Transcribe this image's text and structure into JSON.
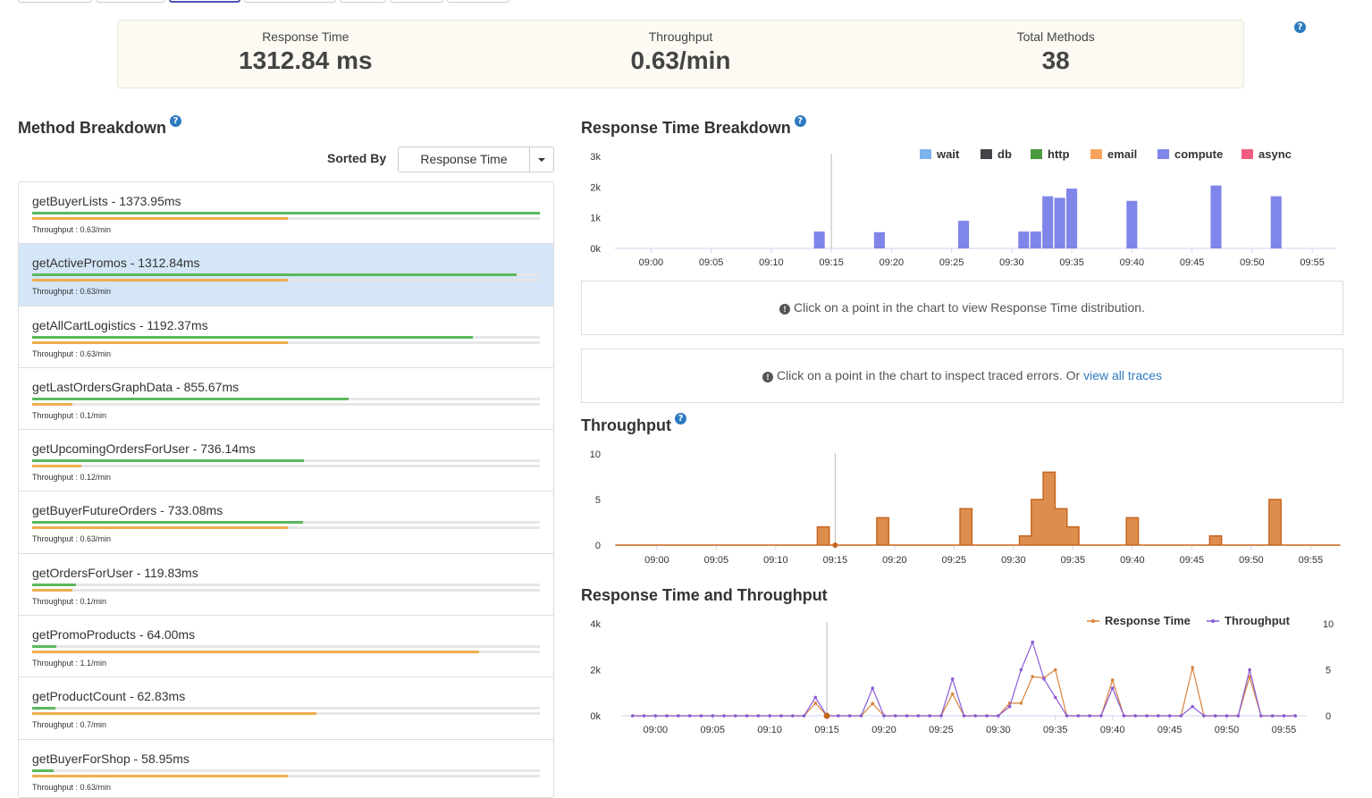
{
  "summary": {
    "response_time_label": "Response Time",
    "response_time_value": "1312.84 ms",
    "throughput_label": "Throughput",
    "throughput_value": "0.63/min",
    "total_methods_label": "Total Methods",
    "total_methods_value": "38"
  },
  "help_glyph": "?",
  "method_breakdown": {
    "title": "Method Breakdown",
    "sorted_by_label": "Sorted By",
    "sorted_by_value": "Response Time",
    "methods": [
      {
        "name": "getBuyerLists - 1373.95ms",
        "throughput": "Throughput : 0.63/min",
        "rt_ratio": 1.0,
        "tp_ratio": 0.504,
        "selected": false
      },
      {
        "name": "getActivePromos - 1312.84ms",
        "throughput": "Throughput : 0.63/min",
        "rt_ratio": 0.955,
        "tp_ratio": 0.504,
        "selected": true
      },
      {
        "name": "getAllCartLogistics - 1192.37ms",
        "throughput": "Throughput : 0.63/min",
        "rt_ratio": 0.868,
        "tp_ratio": 0.504,
        "selected": false
      },
      {
        "name": "getLastOrdersGraphData - 855.67ms",
        "throughput": "Throughput : 0.1/min",
        "rt_ratio": 0.623,
        "tp_ratio": 0.08,
        "selected": false
      },
      {
        "name": "getUpcomingOrdersForUser - 736.14ms",
        "throughput": "Throughput : 0.12/min",
        "rt_ratio": 0.536,
        "tp_ratio": 0.097,
        "selected": false
      },
      {
        "name": "getBuyerFutureOrders - 733.08ms",
        "throughput": "Throughput : 0.63/min",
        "rt_ratio": 0.534,
        "tp_ratio": 0.504,
        "selected": false
      },
      {
        "name": "getOrdersForUser - 119.83ms",
        "throughput": "Throughput : 0.1/min",
        "rt_ratio": 0.087,
        "tp_ratio": 0.08,
        "selected": false
      },
      {
        "name": "getPromoProducts - 64.00ms",
        "throughput": "Throughput : 1.1/min",
        "rt_ratio": 0.047,
        "tp_ratio": 0.88,
        "selected": false
      },
      {
        "name": "getProductCount - 62.83ms",
        "throughput": "Throughput : 0.7/min",
        "rt_ratio": 0.046,
        "tp_ratio": 0.56,
        "selected": false
      },
      {
        "name": "getBuyerForShop - 58.95ms",
        "throughput": "Throughput : 0.63/min",
        "rt_ratio": 0.043,
        "tp_ratio": 0.504,
        "selected": false
      }
    ],
    "colors": {
      "response_time_bar": "#5cb85c",
      "throughput_bar": "#f0ad4e"
    }
  },
  "rt_breakdown": {
    "title": "Response Time Breakdown",
    "legend": [
      {
        "label": "wait",
        "color": "#7cb5ec"
      },
      {
        "label": "db",
        "color": "#434348"
      },
      {
        "label": "http",
        "color": "#4a9a3e"
      },
      {
        "label": "email",
        "color": "#f7a35c"
      },
      {
        "label": "compute",
        "color": "#8085e9"
      },
      {
        "label": "async",
        "color": "#f15c80"
      }
    ]
  },
  "info_rt": {
    "text": "Click on a point in the chart to view Response Time distribution.",
    "icon": "!"
  },
  "info_errors": {
    "text": "Click on a point in the chart to inspect traced errors. Or",
    "link": "view all traces",
    "icon": "!"
  },
  "throughput_chart_title": "Throughput",
  "combined_chart_title": "Response Time and Throughput",
  "combined_legend": {
    "rt": "Response Time",
    "tp": "Throughput"
  },
  "chart_data": [
    {
      "type": "bar",
      "title": "Response Time Breakdown",
      "x_unit": "time",
      "x_ticks": [
        "09:00",
        "09:05",
        "09:10",
        "09:15",
        "09:20",
        "09:25",
        "09:30",
        "09:35",
        "09:40",
        "09:45",
        "09:50",
        "09:55"
      ],
      "y_ticks": [
        "0k",
        "1k",
        "2k",
        "3k"
      ],
      "ylim": [
        0,
        3000
      ],
      "series": [
        {
          "name": "compute",
          "color": "#8085e9",
          "x": [
            "09:14",
            "09:19",
            "09:26",
            "09:31",
            "09:32",
            "09:33",
            "09:34",
            "09:35",
            "09:40",
            "09:47",
            "09:52"
          ],
          "values": [
            550,
            530,
            900,
            550,
            550,
            1700,
            1650,
            1950,
            1550,
            2050,
            1700
          ]
        }
      ]
    },
    {
      "type": "area",
      "title": "Throughput",
      "x_ticks": [
        "09:00",
        "09:05",
        "09:10",
        "09:15",
        "09:20",
        "09:25",
        "09:30",
        "09:35",
        "09:40",
        "09:45",
        "09:50",
        "09:55"
      ],
      "y_ticks": [
        "0",
        "5",
        "10"
      ],
      "ylim": [
        0,
        10
      ],
      "color": "#d9823b",
      "x": [
        "09:14",
        "09:19",
        "09:26",
        "09:31",
        "09:32",
        "09:33",
        "09:34",
        "09:35",
        "09:40",
        "09:47",
        "09:52"
      ],
      "values": [
        2,
        3,
        4,
        1,
        5,
        8,
        4,
        2,
        3,
        1,
        5
      ]
    },
    {
      "type": "line",
      "title": "Response Time and Throughput",
      "x_ticks": [
        "09:00",
        "09:05",
        "09:10",
        "09:15",
        "09:20",
        "09:25",
        "09:30",
        "09:35",
        "09:40",
        "09:45",
        "09:50",
        "09:55"
      ],
      "y_ticks_left": [
        "0k",
        "2k",
        "4k"
      ],
      "y_ticks_right": [
        "0",
        "5",
        "10"
      ],
      "ylim_left": [
        0,
        4000
      ],
      "ylim_right": [
        0,
        10
      ],
      "series": [
        {
          "name": "Response Time",
          "color": "#d9823b",
          "axis": "left",
          "x": [
            "09:14",
            "09:19",
            "09:26",
            "09:31",
            "09:32",
            "09:33",
            "09:34",
            "09:35",
            "09:40",
            "09:47",
            "09:52"
          ],
          "values": [
            550,
            530,
            950,
            550,
            550,
            1700,
            1650,
            2000,
            1550,
            2100,
            1700
          ]
        },
        {
          "name": "Throughput",
          "color": "#8a5cd8",
          "axis": "right",
          "x": [
            "09:14",
            "09:19",
            "09:26",
            "09:31",
            "09:32",
            "09:33",
            "09:34",
            "09:35",
            "09:40",
            "09:47",
            "09:52"
          ],
          "values": [
            2,
            3,
            4,
            1,
            5,
            8,
            4,
            2,
            3,
            1,
            5
          ]
        }
      ]
    }
  ]
}
